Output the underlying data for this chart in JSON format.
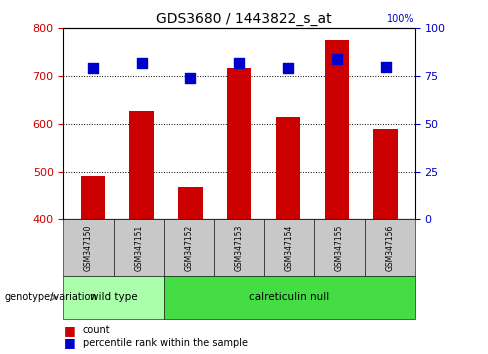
{
  "title": "GDS3680 / 1443822_s_at",
  "samples": [
    "GSM347150",
    "GSM347151",
    "GSM347152",
    "GSM347153",
    "GSM347154",
    "GSM347155",
    "GSM347156"
  ],
  "counts": [
    490,
    628,
    468,
    718,
    614,
    775,
    590
  ],
  "percentile_ranks": [
    79,
    82,
    74,
    82,
    79,
    84,
    80
  ],
  "ylim_left": [
    400,
    800
  ],
  "ylim_right": [
    0,
    100
  ],
  "yticks_left": [
    400,
    500,
    600,
    700,
    800
  ],
  "yticks_right": [
    0,
    25,
    50,
    75,
    100
  ],
  "bar_color": "#cc0000",
  "dot_color": "#0000cc",
  "bg_plot": "#ffffff",
  "bg_label": "#c8c8c8",
  "bg_wildtype": "#aaffaa",
  "bg_calret": "#44dd44",
  "wild_type_samples": [
    0,
    1
  ],
  "calret_samples": [
    2,
    3,
    4,
    5,
    6
  ],
  "wild_type_label": "wild type",
  "calret_label": "calreticulin null",
  "genotype_label": "genotype/variation",
  "legend_count": "count",
  "legend_percentile": "percentile rank within the sample",
  "bar_width": 0.5,
  "dot_size": 50,
  "left_tick_color": "#cc0000",
  "right_tick_color": "#0000cc",
  "right_axis_top_label": "100%"
}
